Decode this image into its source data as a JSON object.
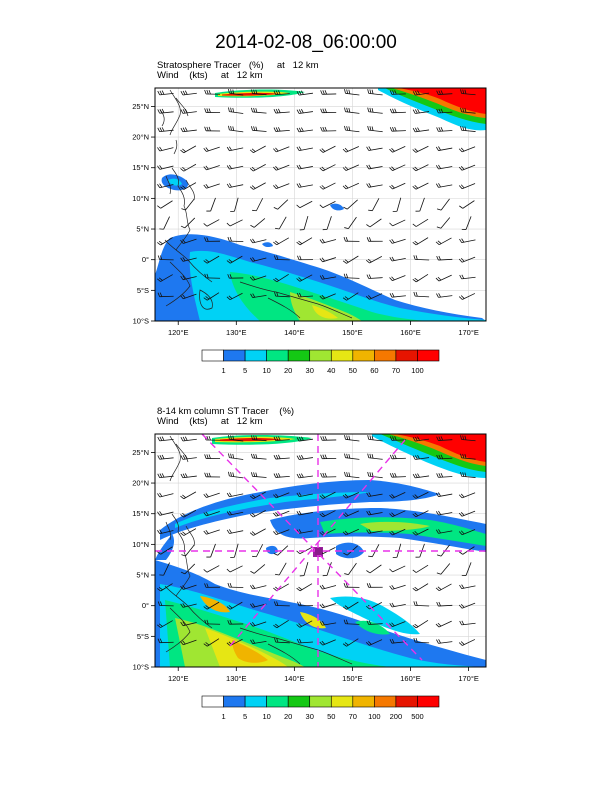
{
  "page_title": "2014-02-08_06:00:00",
  "panels": [
    {
      "title_line1": "Stratosphere Tracer   (%)     at   12 km",
      "title_line2": "Wind    (kts)     at   12 km",
      "colorbar_labels": [
        "1",
        "5",
        "10",
        "20",
        "30",
        "40",
        "50",
        "60",
        "70",
        "100"
      ]
    },
    {
      "title_line1": "8-14 km column ST Tracer    (%)",
      "title_line2": "Wind    (kts)     at   12 km",
      "colorbar_labels": [
        "1",
        "5",
        "10",
        "20",
        "30",
        "50",
        "70",
        "100",
        "200",
        "500"
      ]
    }
  ],
  "map": {
    "lat_labels": [
      "25°N",
      "20°N",
      "15°N",
      "10°N",
      "5°N",
      "0°",
      "5°S",
      "10°S"
    ],
    "lon_labels": [
      "120°E",
      "130°E",
      "140°E",
      "150°E",
      "160°E",
      "170°E"
    ]
  },
  "colors": {
    "palette": [
      "#ffffff",
      "#1e78f0",
      "#00d2f5",
      "#00e682",
      "#14c814",
      "#a0e632",
      "#e6e614",
      "#f0b400",
      "#f57800",
      "#e61400",
      "#ff0000"
    ],
    "cross_section_line": "#e832e8"
  },
  "chart_data": {
    "type": "map",
    "region": "Western Pacific, 116°E–173°E, 10°S–28°N",
    "fields": [
      "Stratosphere Tracer (%) at 12 km",
      "8-14 km column ST Tracer (%)",
      "Wind (kts) at 12 km"
    ],
    "cross_section_marker": {
      "lon": 145,
      "lat": 10
    }
  }
}
